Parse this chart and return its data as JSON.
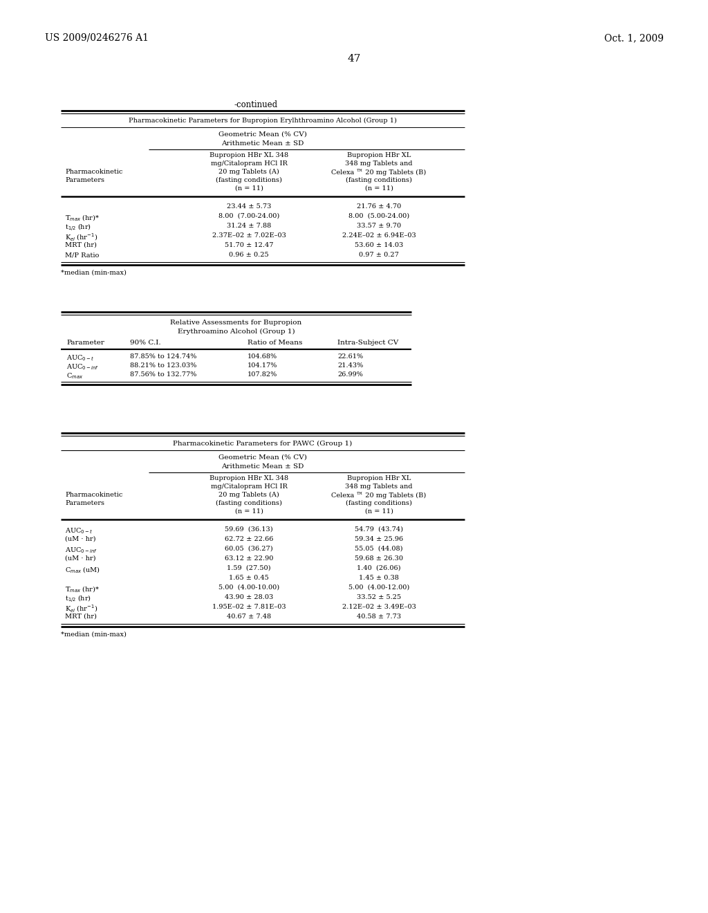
{
  "bg_color": "#ffffff",
  "header_left": "US 2009/0246276 A1",
  "header_right": "Oct. 1, 2009",
  "page_number": "47",
  "continued_label": "-continued",
  "t1_title": "Pharmacokinetic Parameters for Bupropion Erylhthroamino Alcohol (Group 1)",
  "t1_sub1": "Geometric Mean (% CV)",
  "t1_sub2": "Arithmetic Mean ± SD",
  "t1_colA": [
    "Bupropion HBr XL 348",
    "mg/Citalopram HCl IR",
    "20 mg Tablets (A)",
    "(fasting conditions)",
    "(n = 11)"
  ],
  "t1_colB": [
    "Bupropion HBr XL",
    "348 mg Tablets and",
    "Celexa ™ 20 mg Tablets (B)",
    "(fasting conditions)",
    "(n = 11)"
  ],
  "t1_rows": [
    [
      "",
      "23.44 ± 5.73",
      "21.76 ± 4.70"
    ],
    [
      "T$_{max}$ (hr)*",
      "8.00  (7.00-24.00)",
      "8.00  (5.00-24.00)"
    ],
    [
      "t$_{1/2}$ (hr)",
      "31.24 ± 7.88",
      "33.57 ± 9.70"
    ],
    [
      "K$_{el}$ (hr$^{-1}$)",
      "2.37E–02 ± 7.02E–03",
      "2.24E–02 ± 6.94E–03"
    ],
    [
      "MRT (hr)",
      "51.70 ± 12.47",
      "53.60 ± 14.03"
    ],
    [
      "M/P Ratio",
      "0.96 ± 0.25",
      "0.97 ± 0.27"
    ]
  ],
  "t1_footnote": "*median (min-max)",
  "t2_title1": "Relative Assessments for Bupropion",
  "t2_title2": "Erythroamino Alcohol (Group 1)",
  "t2_headers": [
    "Parameter",
    "90% C.I.",
    "Ratio of Means",
    "Intra-Subject CV"
  ],
  "t2_rows": [
    [
      "AUC$_{0-t}$",
      "87.85% to 124.74%",
      "104.68%",
      "22.61%"
    ],
    [
      "AUC$_{0-inf}$",
      "88.21% to 123.03%",
      "104.17%",
      "21.43%"
    ],
    [
      "C$_{max}$",
      "87.56% to 132.77%",
      "107.82%",
      "26.99%"
    ]
  ],
  "t3_title": "Pharmacokinetic Parameters for PAWC (Group 1)",
  "t3_sub1": "Geometric Mean (% CV)",
  "t3_sub2": "Arithmetic Mean ± SD",
  "t3_colA": [
    "Bupropion HBr XL 348",
    "mg/Citalopram HCl IR",
    "20 mg Tablets (A)",
    "(fasting conditions)",
    "(n = 11)"
  ],
  "t3_colB": [
    "Bupropion HBr XL",
    "348 mg Tablets and",
    "Celexa ™ 20 mg Tablets (B)",
    "(fasting conditions)",
    "(n = 11)"
  ],
  "t3_rows": [
    [
      "AUC$_{0-t}$",
      "59.69  (36.13)",
      "54.79  (43.74)"
    ],
    [
      "(uM · hr)",
      "62.72 ± 22.66",
      "59.34 ± 25.96"
    ],
    [
      "AUC$_{0-inf}$",
      "60.05  (36.27)",
      "55.05  (44.08)"
    ],
    [
      "(uM · hr)",
      "63.12 ± 22.90",
      "59.68 ± 26.30"
    ],
    [
      "C$_{max}$ (uM)",
      "1.59  (27.50)",
      "1.40  (26.06)"
    ],
    [
      "",
      "1.65 ± 0.45",
      "1.45 ± 0.38"
    ],
    [
      "T$_{max}$ (hr)*",
      "5.00  (4.00-10.00)",
      "5.00  (4.00-12.00)"
    ],
    [
      "t$_{1/2}$ (hr)",
      "43.90 ± 28.03",
      "33.52 ± 5.25"
    ],
    [
      "K$_{el}$ (hr$^{-1}$)",
      "1.95E–02 ± 7.81E–03",
      "2.12E–02 ± 3.49E–03"
    ],
    [
      "MRT (hr)",
      "40.67 ± 7.48",
      "40.58 ± 7.73"
    ]
  ],
  "t3_footnote": "*median (min-max)"
}
